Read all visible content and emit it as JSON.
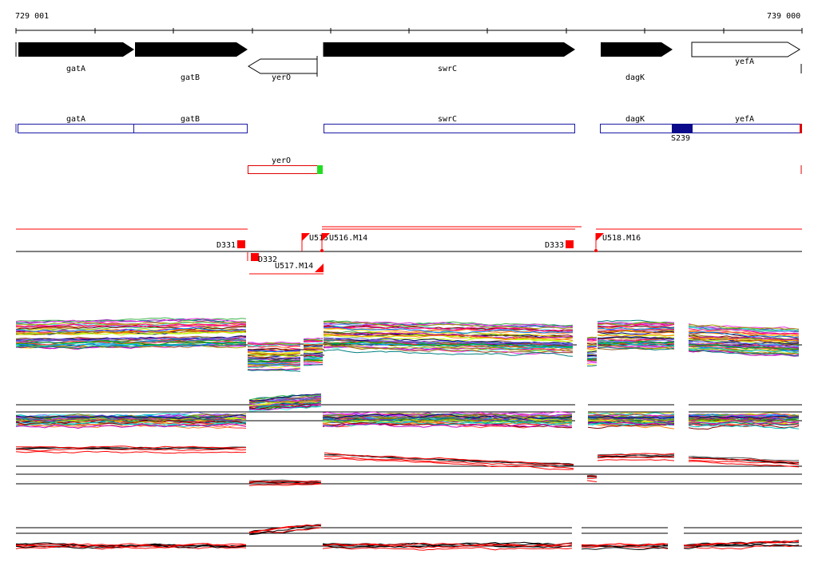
{
  "ruler": {
    "start_label": "729 001",
    "end_label": "739 000"
  },
  "genes": [
    {
      "name": "gatA",
      "strand": "+",
      "filled": true
    },
    {
      "name": "gatB",
      "strand": "+",
      "filled": true
    },
    {
      "name": "yerO",
      "strand": "-",
      "filled": false
    },
    {
      "name": "swrC",
      "strand": "+",
      "filled": true
    },
    {
      "name": "dagK",
      "strand": "+",
      "filled": true
    },
    {
      "name": "yefA",
      "strand": "+",
      "filled": false
    }
  ],
  "annotation_track": {
    "features": [
      "gatA",
      "gatB",
      "swrC",
      "dagK",
      "yefA"
    ],
    "site_label": "S239",
    "minus_feature": "yerO"
  },
  "segment_labels": [
    "D331",
    "D332",
    "U517.M14",
    "U515",
    "U516.M14",
    "D333",
    "U518.M16"
  ],
  "colors": {
    "gene_fill": "#000000",
    "annotation_stroke": "#1a1aa6",
    "site_fill": "#0b0b8c",
    "minus_stroke": "#e00000",
    "marker_green": "#22dd22",
    "segment_red": "#ff0000"
  }
}
